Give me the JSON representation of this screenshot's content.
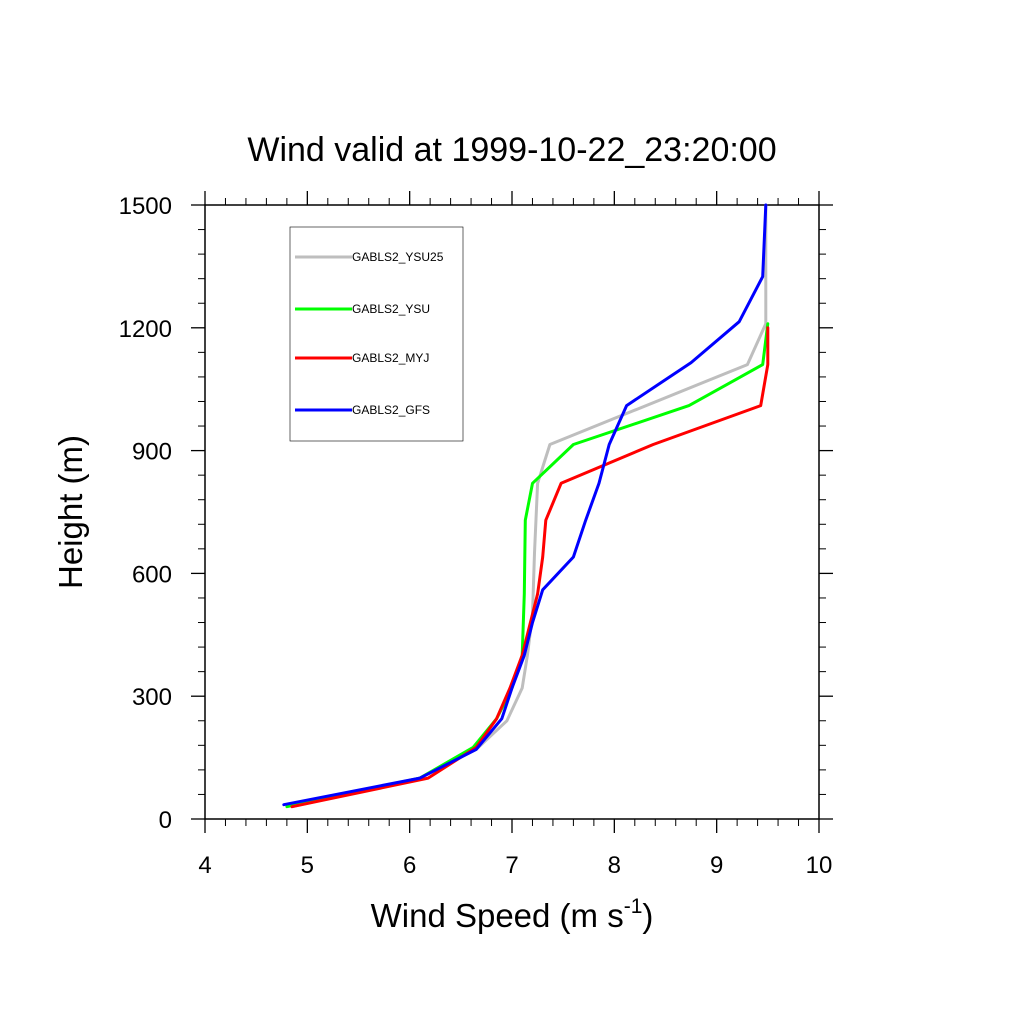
{
  "chart_data": {
    "type": "line",
    "title": "Wind valid at 1999-10-22_23:20:00",
    "xlabel": "Wind Speed (m s",
    "xlabel_sup": "-1",
    "xlabel_end": ")",
    "ylabel": "Height (m)",
    "xlim": [
      4,
      10
    ],
    "ylim": [
      0,
      1500
    ],
    "x_ticks": [
      4,
      5,
      6,
      7,
      8,
      9,
      10
    ],
    "y_ticks": [
      0,
      300,
      600,
      900,
      1200,
      1500
    ],
    "x_tick_labels": [
      "4",
      "5",
      "6",
      "7",
      "8",
      "9",
      "10"
    ],
    "y_tick_labels": [
      "0",
      "300",
      "600",
      "900",
      "1200",
      "1500"
    ],
    "grid": false,
    "legend_position": "top-left",
    "series": [
      {
        "name": "GABLS2_YSU25",
        "color": "#bebebe",
        "points": [
          [
            4.85,
            30
          ],
          [
            6.1,
            100
          ],
          [
            6.65,
            170
          ],
          [
            6.95,
            240
          ],
          [
            7.1,
            320
          ],
          [
            7.15,
            400
          ],
          [
            7.2,
            500
          ],
          [
            7.22,
            650
          ],
          [
            7.25,
            820
          ],
          [
            7.37,
            915
          ],
          [
            9.3,
            1110
          ],
          [
            9.48,
            1210
          ],
          [
            9.48,
            1500
          ]
        ]
      },
      {
        "name": "GABLS2_YSU",
        "color": "#00ff00",
        "points": [
          [
            4.8,
            30
          ],
          [
            6.1,
            100
          ],
          [
            6.62,
            175
          ],
          [
            6.85,
            245
          ],
          [
            7.0,
            320
          ],
          [
            7.1,
            400
          ],
          [
            7.12,
            550
          ],
          [
            7.13,
            730
          ],
          [
            7.2,
            820
          ],
          [
            7.6,
            915
          ],
          [
            8.73,
            1010
          ],
          [
            9.45,
            1110
          ],
          [
            9.5,
            1210
          ]
        ]
      },
      {
        "name": "GABLS2_MYJ",
        "color": "#ff0000",
        "points": [
          [
            4.85,
            30
          ],
          [
            6.18,
            100
          ],
          [
            6.65,
            175
          ],
          [
            6.85,
            245
          ],
          [
            6.98,
            320
          ],
          [
            7.1,
            400
          ],
          [
            7.25,
            550
          ],
          [
            7.3,
            640
          ],
          [
            7.33,
            730
          ],
          [
            7.48,
            820
          ],
          [
            8.38,
            915
          ],
          [
            9.43,
            1010
          ],
          [
            9.5,
            1110
          ],
          [
            9.5,
            1200
          ]
        ]
      },
      {
        "name": "GABLS2_GFS",
        "color": "#0000ff",
        "points": [
          [
            4.77,
            35
          ],
          [
            6.1,
            100
          ],
          [
            6.65,
            170
          ],
          [
            6.9,
            245
          ],
          [
            7.0,
            320
          ],
          [
            7.12,
            400
          ],
          [
            7.2,
            480
          ],
          [
            7.3,
            560
          ],
          [
            7.6,
            640
          ],
          [
            7.72,
            730
          ],
          [
            7.85,
            820
          ],
          [
            7.95,
            915
          ],
          [
            8.12,
            1010
          ],
          [
            8.75,
            1115
          ],
          [
            9.22,
            1215
          ],
          [
            9.45,
            1325
          ],
          [
            9.48,
            1500
          ]
        ]
      }
    ]
  }
}
